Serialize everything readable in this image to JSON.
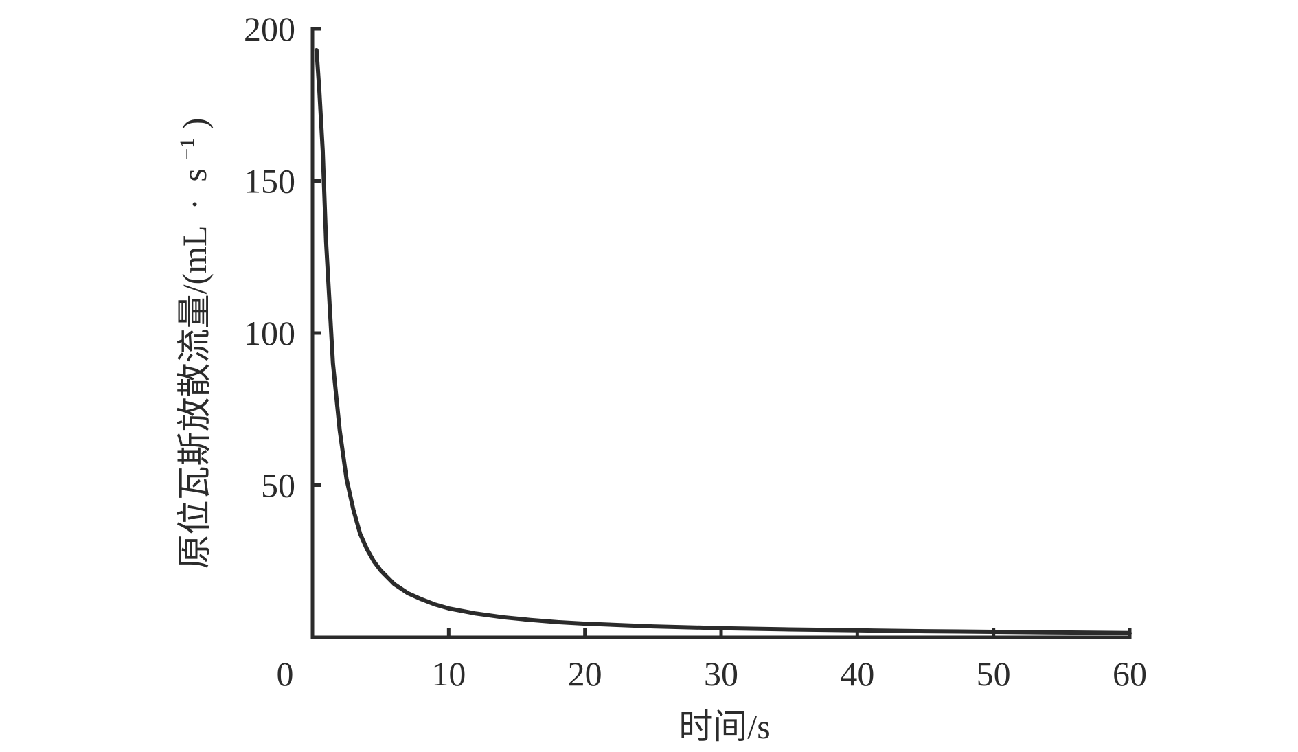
{
  "chart_data": {
    "type": "line",
    "title": "",
    "xlabel": "时间/s",
    "ylabel_main": "原位瓦斯放散流量/(mL",
    "ylabel_dot": "·",
    "ylabel_unit": "s",
    "ylabel_exp": "−1",
    "ylabel_close": ")",
    "xlim": [
      0,
      60
    ],
    "ylim": [
      0,
      200
    ],
    "x_ticks": [
      0,
      10,
      20,
      30,
      40,
      50,
      60
    ],
    "y_ticks": [
      50,
      100,
      150,
      200
    ],
    "grid": false,
    "legend": "none",
    "series": [
      {
        "line_color": "#2b2b2b",
        "x": [
          0.3,
          0.5,
          0.75,
          1,
          1.5,
          2,
          2.5,
          3,
          3.5,
          4,
          4.5,
          5,
          6,
          7,
          8,
          9,
          10,
          12,
          14,
          16,
          18,
          20,
          25,
          30,
          35,
          40,
          45,
          50,
          55,
          60
        ],
        "y": [
          193,
          180,
          160,
          130,
          90,
          68,
          52,
          42,
          34,
          29,
          25,
          22,
          17.5,
          14.5,
          12.5,
          10.8,
          9.5,
          7.8,
          6.6,
          5.7,
          5.0,
          4.5,
          3.6,
          3.0,
          2.6,
          2.3,
          2.0,
          1.8,
          1.6,
          1.4
        ]
      }
    ]
  }
}
